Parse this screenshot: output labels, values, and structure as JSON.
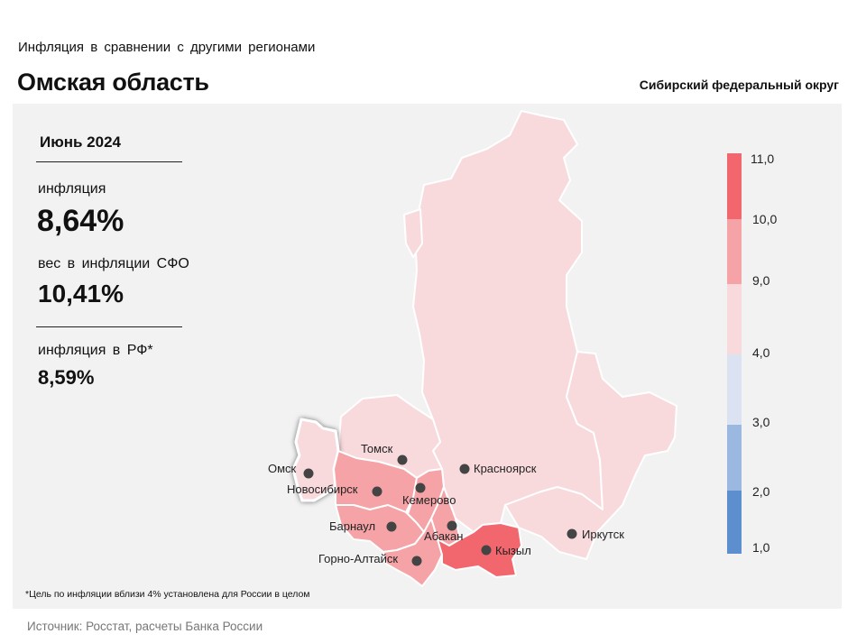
{
  "header": {
    "subtitle": "Инфляция  в сравнении  с другими  регионами",
    "title": "Омская область",
    "district": "Сибирский федеральный округ"
  },
  "stats": {
    "period": "Июнь 2024",
    "inflation_label": "инфляция",
    "inflation_value": "8,64%",
    "weight_label": "вес в инфляции  СФО",
    "weight_value": "10,41%",
    "rf_label": "инфляция  в РФ*",
    "rf_value": "8,59%"
  },
  "legend": {
    "ticks": [
      "11,0",
      "10,0",
      "9,0",
      "4,0",
      "3,0",
      "2,0",
      "1,0"
    ],
    "colors": {
      "10-11": "#f2676d",
      "9-10": "#f5a3a6",
      "4-9": "#f8dadd",
      "3-4": "#dbe3f3",
      "2-3": "#9bb9e0",
      "1-2": "#5d8fcf"
    }
  },
  "cities": {
    "omsk": "Омск",
    "tomsk": "Томск",
    "novosibirsk": "Новосибирск",
    "kemerovo": "Кемерово",
    "krasnoyarsk": "Красноярск",
    "barnaul": "Барнаул",
    "abakan": "Абакан",
    "gorno_altaysk": "Горно-Алтайск",
    "kyzyl": "Кызыл",
    "irkutsk": "Иркутск"
  },
  "footnote": "*Цель по инфляции вблизи 4% установлена для России в целом",
  "source": "Источник: Росстат, расчеты Банка России"
}
